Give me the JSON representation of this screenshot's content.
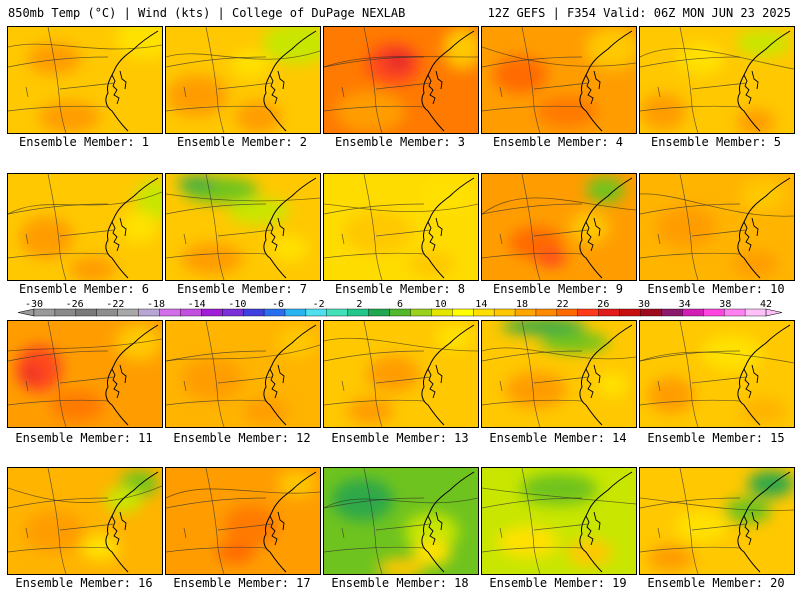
{
  "header": {
    "left": "850mb Temp (°C) | Wind (kts) | College of DuPage NEXLAB",
    "right": "12Z GEFS | F354 Valid: 06Z MON JUN 23 2025"
  },
  "members": [
    {
      "label": "Ensemble Member: 1",
      "base": "#ffc800",
      "blobs": [
        [
          "#ff9d00",
          0.3,
          0.3,
          0.35,
          0.3
        ],
        [
          "#ffe100",
          0.9,
          0.1,
          0.4,
          0.4
        ],
        [
          "#ff9d00",
          0.4,
          0.85,
          0.4,
          0.3
        ]
      ]
    },
    {
      "label": "Ensemble Member: 2",
      "base": "#ffc800",
      "blobs": [
        [
          "#c8e600",
          0.85,
          0.15,
          0.45,
          0.4
        ],
        [
          "#ff9d00",
          0.2,
          0.65,
          0.4,
          0.4
        ],
        [
          "#ff9d00",
          0.6,
          0.85,
          0.3,
          0.3
        ],
        [
          "#ffe100",
          0.55,
          0.35,
          0.25,
          0.25
        ]
      ]
    },
    {
      "label": "Ensemble Member: 3",
      "base": "#ff7a00",
      "blobs": [
        [
          "#ff4a1a",
          0.45,
          0.35,
          0.35,
          0.4
        ],
        [
          "#e62a2a",
          0.48,
          0.32,
          0.18,
          0.2
        ],
        [
          "#ff9d00",
          0.3,
          0.8,
          0.45,
          0.4
        ],
        [
          "#ffc800",
          0.9,
          0.2,
          0.25,
          0.4
        ]
      ]
    },
    {
      "label": "Ensemble Member: 4",
      "base": "#ff9d00",
      "blobs": [
        [
          "#ff6a00",
          0.25,
          0.45,
          0.35,
          0.35
        ],
        [
          "#ffc800",
          0.85,
          0.2,
          0.35,
          0.4
        ],
        [
          "#ff7a00",
          0.55,
          0.8,
          0.4,
          0.3
        ]
      ]
    },
    {
      "label": "Ensemble Member: 5",
      "base": "#ffc800",
      "blobs": [
        [
          "#c8e600",
          0.8,
          0.15,
          0.35,
          0.25
        ],
        [
          "#ffe100",
          0.4,
          0.3,
          0.3,
          0.3
        ],
        [
          "#ff9d00",
          0.15,
          0.8,
          0.3,
          0.35
        ],
        [
          "#ff9d00",
          0.75,
          0.9,
          0.25,
          0.25
        ]
      ]
    },
    {
      "label": "Ensemble Member: 6",
      "base": "#ffc800",
      "blobs": [
        [
          "#c8e600",
          0.95,
          0.25,
          0.25,
          0.4
        ],
        [
          "#ffe100",
          0.85,
          0.5,
          0.25,
          0.3
        ],
        [
          "#ff9d00",
          0.25,
          0.6,
          0.35,
          0.4
        ],
        [
          "#ff9d00",
          0.55,
          0.9,
          0.3,
          0.25
        ]
      ]
    },
    {
      "label": "Ensemble Member: 7",
      "base": "#ffc800",
      "blobs": [
        [
          "#6fc31e",
          0.35,
          0.15,
          0.5,
          0.25
        ],
        [
          "#2fa84a",
          0.2,
          0.08,
          0.25,
          0.12
        ],
        [
          "#c8e600",
          0.6,
          0.35,
          0.4,
          0.25
        ],
        [
          "#ff9d00",
          0.3,
          0.8,
          0.4,
          0.3
        ],
        [
          "#ffe100",
          0.8,
          0.7,
          0.25,
          0.25
        ]
      ]
    },
    {
      "label": "Ensemble Member: 8",
      "base": "#ffdc00",
      "blobs": [
        [
          "#ffc800",
          0.35,
          0.55,
          0.45,
          0.4
        ],
        [
          "#ffe100",
          0.8,
          0.2,
          0.3,
          0.3
        ],
        [
          "#ffc800",
          0.7,
          0.85,
          0.3,
          0.25
        ]
      ]
    },
    {
      "label": "Ensemble Member: 9",
      "base": "#ff9d00",
      "blobs": [
        [
          "#ff6a00",
          0.35,
          0.65,
          0.35,
          0.3
        ],
        [
          "#ff4a1a",
          0.45,
          0.8,
          0.2,
          0.15
        ],
        [
          "#6fc31e",
          0.8,
          0.15,
          0.25,
          0.25
        ],
        [
          "#ffc800",
          0.7,
          0.5,
          0.25,
          0.3
        ]
      ]
    },
    {
      "label": "Ensemble Member: 10",
      "base": "#ffb400",
      "blobs": [
        [
          "#ff9d00",
          0.3,
          0.5,
          0.4,
          0.4
        ],
        [
          "#ffc800",
          0.8,
          0.2,
          0.3,
          0.3
        ],
        [
          "#ff9d00",
          0.75,
          0.85,
          0.3,
          0.25
        ]
      ]
    },
    {
      "label": "Ensemble Member: 11",
      "base": "#ff9d00",
      "blobs": [
        [
          "#ff4a1a",
          0.2,
          0.45,
          0.3,
          0.45
        ],
        [
          "#e62a2a",
          0.15,
          0.5,
          0.12,
          0.15
        ],
        [
          "#ffc800",
          0.85,
          0.2,
          0.3,
          0.35
        ],
        [
          "#ff7a00",
          0.45,
          0.8,
          0.35,
          0.3
        ]
      ]
    },
    {
      "label": "Ensemble Member: 12",
      "base": "#ffb400",
      "blobs": [
        [
          "#ff9d00",
          0.3,
          0.55,
          0.4,
          0.4
        ],
        [
          "#ffc800",
          0.85,
          0.2,
          0.25,
          0.3
        ],
        [
          "#ff9d00",
          0.65,
          0.85,
          0.3,
          0.25
        ]
      ]
    },
    {
      "label": "Ensemble Member: 13",
      "base": "#ffc800",
      "blobs": [
        [
          "#ff9d00",
          0.45,
          0.5,
          0.35,
          0.35
        ],
        [
          "#ffe100",
          0.85,
          0.15,
          0.25,
          0.25
        ],
        [
          "#ff9d00",
          0.3,
          0.85,
          0.3,
          0.25
        ]
      ]
    },
    {
      "label": "Ensemble Member: 14",
      "base": "#ffc800",
      "blobs": [
        [
          "#2fa84a",
          0.4,
          0.05,
          0.55,
          0.15
        ],
        [
          "#6fc31e",
          0.6,
          0.2,
          0.45,
          0.2
        ],
        [
          "#ff9d00",
          0.35,
          0.65,
          0.4,
          0.35
        ],
        [
          "#ffe100",
          0.85,
          0.6,
          0.2,
          0.25
        ]
      ]
    },
    {
      "label": "Ensemble Member: 15",
      "base": "#ffc800",
      "blobs": [
        [
          "#ffe100",
          0.6,
          0.3,
          0.4,
          0.35
        ],
        [
          "#ff9d00",
          0.2,
          0.7,
          0.3,
          0.35
        ],
        [
          "#ffb400",
          0.8,
          0.85,
          0.3,
          0.25
        ]
      ]
    },
    {
      "label": "Ensemble Member: 16",
      "base": "#ffb400",
      "blobs": [
        [
          "#6fc31e",
          0.85,
          0.15,
          0.25,
          0.25
        ],
        [
          "#c8e600",
          0.75,
          0.3,
          0.25,
          0.25
        ],
        [
          "#ff9d00",
          0.3,
          0.6,
          0.4,
          0.4
        ],
        [
          "#ffe100",
          0.6,
          0.75,
          0.25,
          0.25
        ]
      ]
    },
    {
      "label": "Ensemble Member: 17",
      "base": "#ff9d00",
      "blobs": [
        [
          "#ff7a00",
          0.55,
          0.55,
          0.35,
          0.4
        ],
        [
          "#ffc800",
          0.85,
          0.15,
          0.25,
          0.25
        ],
        [
          "#ff6a00",
          0.45,
          0.8,
          0.25,
          0.2
        ]
      ]
    },
    {
      "label": "Ensemble Member: 18",
      "base": "#6fc31e",
      "blobs": [
        [
          "#2fa84a",
          0.25,
          0.3,
          0.4,
          0.4
        ],
        [
          "#c8e600",
          0.7,
          0.6,
          0.35,
          0.35
        ],
        [
          "#ffe100",
          0.7,
          0.8,
          0.25,
          0.25
        ],
        [
          "#ffc800",
          0.5,
          0.95,
          0.3,
          0.2
        ]
      ]
    },
    {
      "label": "Ensemble Member: 19",
      "base": "#c8e600",
      "blobs": [
        [
          "#6fc31e",
          0.5,
          0.2,
          0.5,
          0.3
        ],
        [
          "#ffe100",
          0.3,
          0.7,
          0.4,
          0.3
        ],
        [
          "#ffc800",
          0.7,
          0.8,
          0.3,
          0.25
        ]
      ]
    },
    {
      "label": "Ensemble Member: 20",
      "base": "#ffc800",
      "blobs": [
        [
          "#2fa84a",
          0.85,
          0.15,
          0.3,
          0.25
        ],
        [
          "#6fc31e",
          0.7,
          0.4,
          0.3,
          0.25
        ],
        [
          "#ffe100",
          0.4,
          0.55,
          0.35,
          0.3
        ],
        [
          "#ff9d00",
          0.2,
          0.85,
          0.3,
          0.25
        ]
      ]
    }
  ],
  "colorbar": {
    "ticks": [
      "-30",
      "-26",
      "-22",
      "-18",
      "-14",
      "-10",
      "-6",
      "-2",
      "2",
      "6",
      "10",
      "14",
      "18",
      "22",
      "26",
      "30",
      "34",
      "38",
      "42"
    ],
    "colors": [
      "#9a9a9a",
      "#8a8a8a",
      "#7a7a7a",
      "#8e8e8e",
      "#a8a8a8",
      "#b7a6d3",
      "#d16ee8",
      "#c24fe0",
      "#a01fd6",
      "#7a2fd8",
      "#3f3fe0",
      "#2a6ef0",
      "#27b4f0",
      "#4fe0f0",
      "#44e0b8",
      "#23c78a",
      "#1fa84f",
      "#52b82b",
      "#9ad11d",
      "#e5e600",
      "#ffff00",
      "#ffdf00",
      "#ffc800",
      "#ffa500",
      "#ff8a00",
      "#ff6a00",
      "#ff3a1a",
      "#e21a1a",
      "#c80f0f",
      "#a00a1e",
      "#8b1a6c",
      "#d21eb4",
      "#ff44e0",
      "#ff80f0",
      "#ffbff8"
    ]
  }
}
